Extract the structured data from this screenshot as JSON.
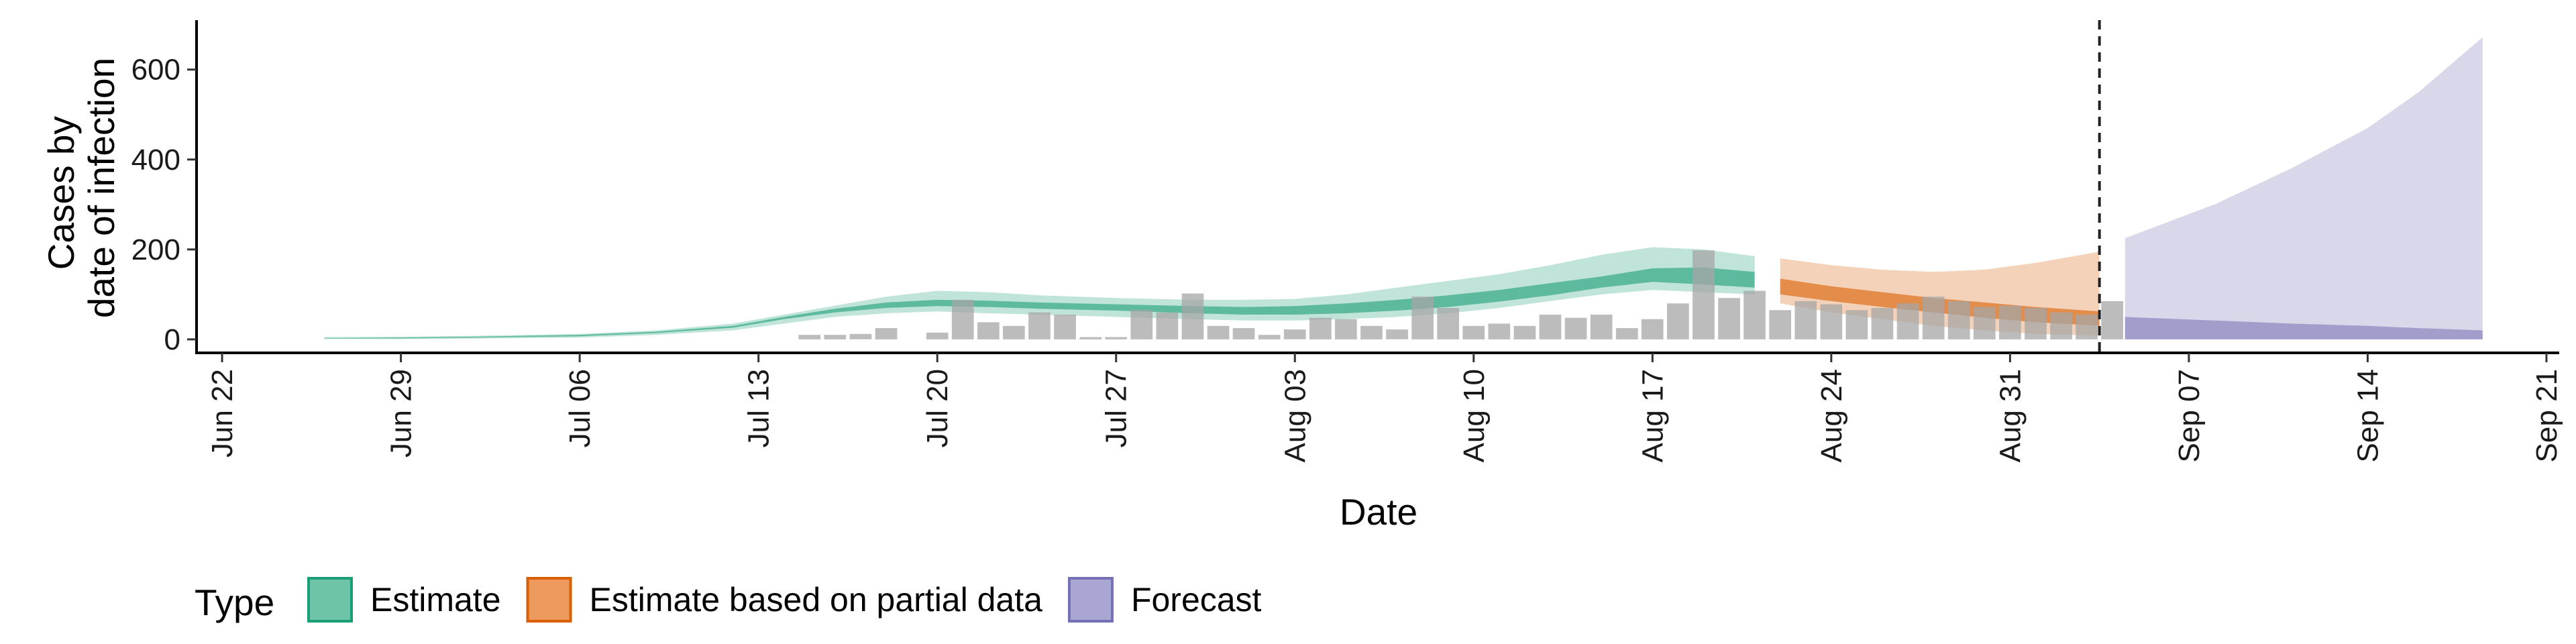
{
  "chart_data": {
    "type": "area",
    "title": "",
    "xlabel": "Date",
    "ylabel": [
      "Cases by",
      "date of infection"
    ],
    "x_ticks": [
      "Jun 22",
      "Jun 29",
      "Jul 06",
      "Jul 13",
      "Jul 20",
      "Jul 27",
      "Aug 03",
      "Aug 10",
      "Aug 17",
      "Aug 24",
      "Aug 31",
      "Sep 07",
      "Sep 14",
      "Sep 21"
    ],
    "x_tick_days": [
      0,
      7,
      14,
      21,
      28,
      35,
      42,
      49,
      56,
      63,
      70,
      77,
      84,
      91
    ],
    "xlim_days": [
      -1,
      91.5
    ],
    "y_ticks": [
      0,
      200,
      400,
      600
    ],
    "ylim": [
      -30,
      710
    ],
    "day_zero": "Jun 22",
    "forecast_start_line_day": 73.5,
    "legend": {
      "title": "Type",
      "position": "bottom",
      "items": [
        {
          "label": "Estimate",
          "fill": "#6dc4a7",
          "stroke": "#1b9e77"
        },
        {
          "label": "Estimate based on partial data",
          "fill": "#ee9a5e",
          "stroke": "#d95f02"
        },
        {
          "label": "Forecast",
          "fill": "#a9a6d3",
          "stroke": "#7570b3"
        }
      ]
    },
    "colors": {
      "estimate": "#1b9e77",
      "partial": "#d95f02",
      "forecast": "#7570b3",
      "observed_bars": "#a6a6a6",
      "forecast_line": "#222222"
    },
    "observed_cases": {
      "days": [
        23,
        24,
        25,
        26,
        27,
        28,
        29,
        30,
        31,
        32,
        33,
        34,
        35,
        36,
        37,
        38,
        39,
        40,
        41,
        42,
        43,
        44,
        45,
        46,
        47,
        48,
        49,
        50,
        51,
        52,
        53,
        54,
        55,
        56,
        57,
        58,
        59,
        60,
        61,
        62,
        63,
        64,
        65,
        66,
        67,
        68,
        69,
        70,
        71,
        72,
        73,
        74
      ],
      "values": [
        10,
        10,
        12,
        25,
        0,
        15,
        88,
        38,
        30,
        60,
        55,
        5,
        5,
        65,
        60,
        102,
        30,
        25,
        10,
        22,
        48,
        45,
        30,
        22,
        95,
        70,
        30,
        35,
        30,
        55,
        48,
        55,
        25,
        45,
        80,
        198,
        92,
        108,
        65,
        85,
        78,
        65,
        70,
        80,
        95,
        85,
        72,
        75,
        70,
        60,
        55,
        85
      ]
    },
    "series": [
      {
        "name": "Estimate",
        "days": [
          4,
          7,
          10,
          14,
          17,
          20,
          22,
          24,
          26,
          28,
          30,
          32,
          35,
          38,
          40,
          42,
          44,
          46,
          48,
          50,
          52,
          54,
          56,
          58,
          60
        ],
        "outer_lower": [
          1,
          1,
          2,
          4,
          10,
          20,
          35,
          50,
          58,
          62,
          58,
          55,
          50,
          45,
          42,
          42,
          45,
          50,
          58,
          70,
          85,
          100,
          110,
          105,
          100
        ],
        "outer_upper": [
          5,
          6,
          8,
          12,
          20,
          35,
          55,
          75,
          95,
          108,
          105,
          98,
          92,
          88,
          88,
          90,
          100,
          115,
          130,
          145,
          165,
          188,
          205,
          200,
          185
        ],
        "inner_lower": [
          2,
          2,
          4,
          7,
          14,
          26,
          45,
          60,
          70,
          74,
          72,
          68,
          64,
          58,
          55,
          55,
          58,
          64,
          72,
          84,
          98,
          115,
          128,
          122,
          115
        ],
        "inner_upper": [
          3,
          4,
          6,
          10,
          17,
          30,
          50,
          68,
          82,
          88,
          86,
          82,
          78,
          74,
          72,
          74,
          80,
          88,
          98,
          110,
          125,
          140,
          158,
          160,
          150
        ]
      },
      {
        "name": "Estimate based on partial data",
        "days": [
          61,
          63,
          65,
          67,
          69,
          71,
          73.5
        ],
        "outer_lower": [
          80,
          60,
          45,
          30,
          20,
          12,
          8
        ],
        "outer_upper": [
          180,
          165,
          155,
          150,
          155,
          170,
          195
        ],
        "inner_lower": [
          100,
          85,
          72,
          60,
          48,
          38,
          30
        ],
        "inner_upper": [
          135,
          118,
          105,
          92,
          82,
          72,
          62
        ]
      },
      {
        "name": "Forecast",
        "days": [
          74.5,
          78,
          81,
          84,
          86,
          88.5
        ],
        "outer_lower": [
          0,
          0,
          0,
          0,
          0,
          0
        ],
        "outer_upper": [
          225,
          300,
          380,
          470,
          550,
          672
        ],
        "inner_lower": [
          0,
          0,
          0,
          0,
          0,
          0
        ],
        "inner_upper": [
          50,
          42,
          35,
          30,
          25,
          20
        ]
      }
    ]
  }
}
